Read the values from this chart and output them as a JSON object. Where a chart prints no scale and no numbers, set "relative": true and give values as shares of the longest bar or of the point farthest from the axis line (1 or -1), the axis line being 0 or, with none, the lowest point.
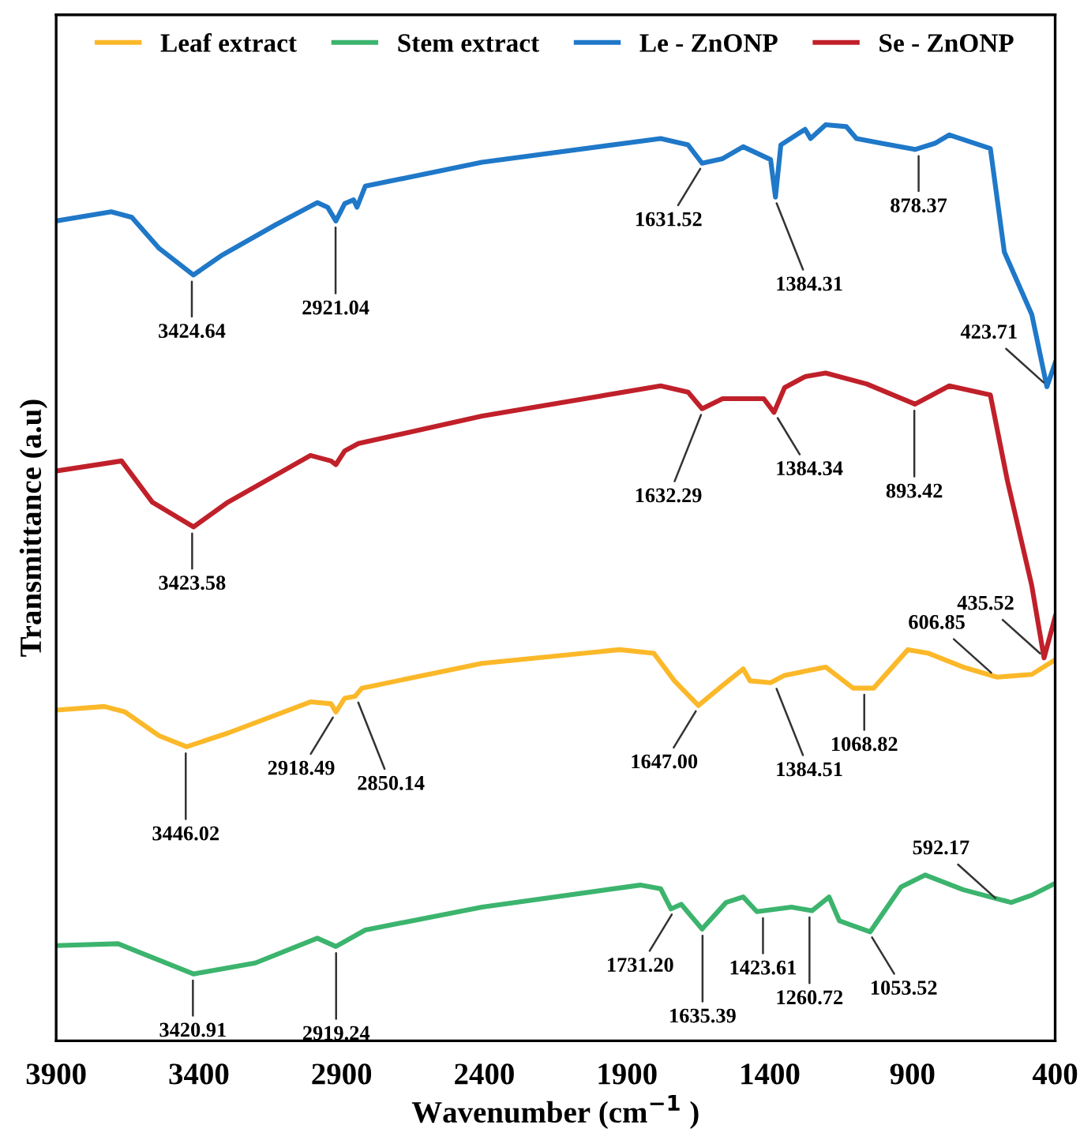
{
  "chart_data": {
    "type": "line",
    "relative": true,
    "xlabel": "Wavenumber (cm$^{−1}$ )",
    "ylabel": "Transmittance (a.u)",
    "xlim": [
      3900,
      400
    ],
    "xticks": [
      3900,
      3400,
      2900,
      2400,
      1900,
      1400,
      900,
      400
    ],
    "legend": "top",
    "grid": false,
    "marker": "none",
    "line_style": "solid",
    "series": [
      {
        "name": "Leaf extract",
        "color": "#fbb829",
        "x": [
          3900,
          3731,
          3659,
          3539,
          3443,
          3298,
          3009,
          2937,
          2920,
          2889,
          2853,
          2829,
          2408,
          1926,
          1806,
          1734,
          1650,
          1565,
          1493,
          1469,
          1397,
          1348,
          1204,
          1108,
          1036,
          916,
          843,
          723,
          603,
          482,
          400
        ],
        "values": [
          0.361,
          0.365,
          0.359,
          0.333,
          0.321,
          0.336,
          0.37,
          0.368,
          0.359,
          0.374,
          0.376,
          0.385,
          0.412,
          0.427,
          0.423,
          0.393,
          0.366,
          0.388,
          0.406,
          0.393,
          0.391,
          0.399,
          0.408,
          0.385,
          0.385,
          0.427,
          0.423,
          0.408,
          0.397,
          0.4,
          0.416
        ]
      },
      {
        "name": "Stem extract",
        "color": "#3cb46e",
        "x": [
          3900,
          3683,
          3611,
          3419,
          3202,
          2985,
          2920,
          2817,
          2408,
          1854,
          1782,
          1746,
          1710,
          1637,
          1553,
          1493,
          1445,
          1324,
          1252,
          1192,
          1156,
          1048,
          940,
          855,
          723,
          554,
          482,
          400
        ],
        "values": [
          0.104,
          0.106,
          0.097,
          0.073,
          0.085,
          0.112,
          0.103,
          0.121,
          0.146,
          0.17,
          0.166,
          0.144,
          0.149,
          0.122,
          0.151,
          0.157,
          0.141,
          0.146,
          0.142,
          0.157,
          0.131,
          0.119,
          0.168,
          0.181,
          0.165,
          0.151,
          0.159,
          0.172
        ]
      },
      {
        "name": "Le - ZnONP",
        "color": "#1f78c8",
        "x": [
          3900,
          3707,
          3635,
          3539,
          3419,
          3322,
          3130,
          2985,
          2949,
          2920,
          2889,
          2858,
          2846,
          2817,
          2408,
          1782,
          1686,
          1637,
          1565,
          1493,
          1397,
          1380,
          1361,
          1276,
          1257,
          1204,
          1132,
          1096,
          1012,
          891,
          819,
          771,
          627,
          578,
          482,
          429,
          400
        ],
        "values": [
          0.895,
          0.905,
          0.899,
          0.865,
          0.836,
          0.857,
          0.891,
          0.915,
          0.91,
          0.895,
          0.914,
          0.918,
          0.91,
          0.933,
          0.959,
          0.985,
          0.978,
          0.958,
          0.963,
          0.976,
          0.962,
          0.921,
          0.978,
          0.995,
          0.985,
          1.0,
          0.998,
          0.985,
          0.98,
          0.973,
          0.98,
          0.989,
          0.974,
          0.861,
          0.793,
          0.714,
          0.74
        ]
      },
      {
        "name": "Se - ZnONP",
        "color": "#c0202a",
        "x": [
          3900,
          3671,
          3563,
          3419,
          3298,
          3009,
          2937,
          2920,
          2889,
          2841,
          2408,
          1782,
          1686,
          1637,
          1565,
          1421,
          1385,
          1348,
          1276,
          1204,
          1060,
          891,
          771,
          627,
          567,
          482,
          439,
          400
        ],
        "values": [
          0.622,
          0.633,
          0.588,
          0.561,
          0.588,
          0.639,
          0.633,
          0.629,
          0.644,
          0.652,
          0.682,
          0.715,
          0.708,
          0.69,
          0.701,
          0.701,
          0.686,
          0.713,
          0.725,
          0.729,
          0.717,
          0.695,
          0.715,
          0.705,
          0.611,
          0.497,
          0.418,
          0.463
        ]
      }
    ],
    "annotations": [
      {
        "text": "3424.64",
        "x": 3424.64,
        "y": 0.836
      },
      {
        "text": "2921.04",
        "x": 2921.04,
        "y": 0.895
      },
      {
        "text": "1631.52",
        "x": 1631.52,
        "y": 0.958
      },
      {
        "text": "1384.31",
        "x": 1384.31,
        "y": 0.921
      },
      {
        "text": "878.37",
        "x": 878.37,
        "y": 0.973
      },
      {
        "text": "423.71",
        "x": 423.71,
        "y": 0.714
      },
      {
        "text": "3423.58",
        "x": 3423.58,
        "y": 0.561
      },
      {
        "text": "1632.29",
        "x": 1632.29,
        "y": 0.69
      },
      {
        "text": "1384.34",
        "x": 1384.34,
        "y": 0.686
      },
      {
        "text": "893.42",
        "x": 893.42,
        "y": 0.695
      },
      {
        "text": "435.52",
        "x": 435.52,
        "y": 0.418
      },
      {
        "text": "3446.02",
        "x": 3446.02,
        "y": 0.321
      },
      {
        "text": "2918.49",
        "x": 2918.49,
        "y": 0.359
      },
      {
        "text": "2850.14",
        "x": 2850.14,
        "y": 0.376
      },
      {
        "text": "1647.00",
        "x": 1647.0,
        "y": 0.366
      },
      {
        "text": "1384.51",
        "x": 1384.51,
        "y": 0.391
      },
      {
        "text": "1068.82",
        "x": 1068.82,
        "y": 0.385
      },
      {
        "text": "606.85",
        "x": 606.85,
        "y": 0.397
      },
      {
        "text": "3420.91",
        "x": 3420.91,
        "y": 0.073
      },
      {
        "text": "2919.24",
        "x": 2919.24,
        "y": 0.103
      },
      {
        "text": "1731.20",
        "x": 1731.2,
        "y": 0.144
      },
      {
        "text": "1635.39",
        "x": 1635.39,
        "y": 0.122
      },
      {
        "text": "1423.61",
        "x": 1423.61,
        "y": 0.141
      },
      {
        "text": "1260.72",
        "x": 1260.72,
        "y": 0.142
      },
      {
        "text": "1053.52",
        "x": 1053.52,
        "y": 0.119
      },
      {
        "text": "592.17",
        "x": 592.17,
        "y": 0.151
      }
    ]
  }
}
